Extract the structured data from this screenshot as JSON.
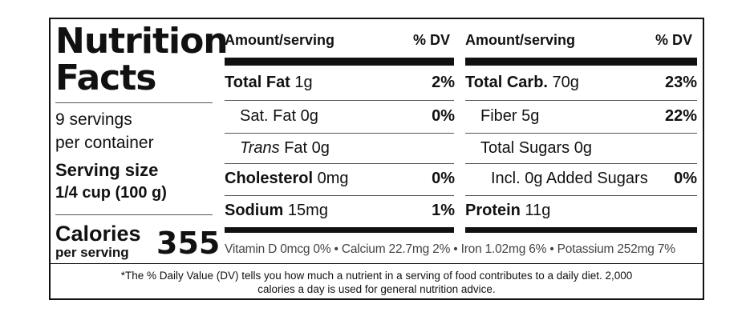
{
  "panel": {
    "title_line1": "Nutrition",
    "title_line2": "Facts",
    "servings_line1": "9 servings",
    "servings_line2": "per container",
    "serving_size_label": "Serving size",
    "serving_size_value": "1/4 cup  (100 g)",
    "calories_label": "Calories",
    "per_serving_label": "per serving",
    "calories_value": "355"
  },
  "headers": {
    "amount_left": "Amount/serving",
    "dv_left": "% DV",
    "amount_right": "Amount/serving",
    "dv_right": "% DV"
  },
  "left_rows": [
    {
      "name": "Total Fat",
      "amount": "1g",
      "dv": "2%"
    },
    {
      "name": "Sat. Fat",
      "amount": "0g",
      "dv": "0%"
    },
    {
      "name_italic": "Trans",
      "name": "Fat",
      "amount": "0g",
      "dv": ""
    },
    {
      "name": "Cholesterol",
      "amount": "0mg",
      "dv": "0%"
    },
    {
      "name": "Sodium",
      "amount": "15mg",
      "dv": "1%"
    }
  ],
  "right_rows": [
    {
      "name": "Total Carb.",
      "amount": "70g",
      "dv": "23%"
    },
    {
      "name": "Fiber",
      "amount": "5g",
      "dv": "22%"
    },
    {
      "name": "Total Sugars",
      "amount": "0g",
      "dv": ""
    },
    {
      "name": "Incl. 0g Added Sugars",
      "amount": "",
      "dv": "0%"
    },
    {
      "name": "Protein",
      "amount": "11g",
      "dv": ""
    }
  ],
  "vitamins": "Vitamin D 0mcg 0% • Calcium 22.7mg 2% • Iron 1.02mg 6% • Potassium 252mg  7%",
  "footnote_line1": "*The % Daily Value (DV) tells you how much a nutrient in a serving of food contributes to a daily diet. 2,000",
  "footnote_line2": "calories a day is used for general nutrition advice."
}
